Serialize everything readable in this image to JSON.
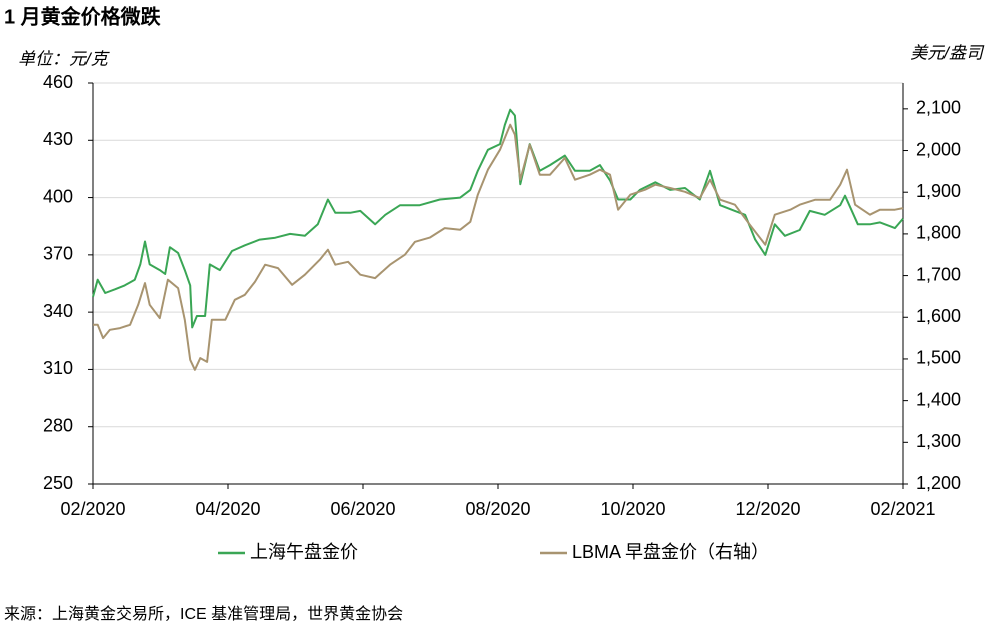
{
  "chart_data": {
    "type": "line",
    "title": "1 月黄金价格微跌",
    "ylabel": "单位：元/克",
    "y2label": "美元/盎司",
    "source": "来源：上海黄金交易所，ICE 基准管理局，世界黄金协会",
    "xlim": [
      0,
      12
    ],
    "xticks": [
      {
        "value": 0,
        "label": "02/2020"
      },
      {
        "value": 2,
        "label": "04/2020"
      },
      {
        "value": 4,
        "label": "06/2020"
      },
      {
        "value": 6,
        "label": "08/2020"
      },
      {
        "value": 8,
        "label": "10/2020"
      },
      {
        "value": 10,
        "label": "12/2020"
      },
      {
        "value": 12,
        "label": "02/2021"
      }
    ],
    "ylim": [
      250,
      460
    ],
    "yticks": [
      250,
      280,
      310,
      340,
      370,
      400,
      430,
      460
    ],
    "y2lim": [
      1200,
      2162
    ],
    "y2ticks": [
      {
        "value": 1200,
        "label": "1,200"
      },
      {
        "value": 1300,
        "label": "1,300"
      },
      {
        "value": 1400,
        "label": "1,400"
      },
      {
        "value": 1500,
        "label": "1,500"
      },
      {
        "value": 1600,
        "label": "1,600"
      },
      {
        "value": 1700,
        "label": "1,700"
      },
      {
        "value": 1800,
        "label": "1,800"
      },
      {
        "value": 1900,
        "label": "1,900"
      },
      {
        "value": 2000,
        "label": "2,000"
      },
      {
        "value": 2100,
        "label": "2,100"
      }
    ],
    "grid": true,
    "legend": "bottom",
    "series": [
      {
        "name": "上海午盘金价",
        "color": "#3aa655",
        "x": [
          0,
          0.07,
          0.18,
          0.33,
          0.47,
          0.62,
          0.7,
          0.77,
          0.84,
          0.99,
          1.07,
          1.14,
          1.26,
          1.36,
          1.44,
          1.47,
          1.54,
          1.66,
          1.73,
          1.88,
          2.06,
          2.25,
          2.47,
          2.7,
          2.92,
          3.14,
          3.33,
          3.48,
          3.59,
          3.81,
          3.96,
          4.18,
          4.33,
          4.55,
          4.84,
          5.14,
          5.44,
          5.59,
          5.7,
          5.85,
          6.03,
          6.1,
          6.18,
          6.25,
          6.33,
          6.47,
          6.62,
          6.77,
          6.99,
          7.14,
          7.36,
          7.51,
          7.66,
          7.78,
          7.96,
          8.1,
          8.33,
          8.55,
          8.77,
          8.99,
          9.14,
          9.29,
          9.51,
          9.66,
          9.81,
          9.96,
          10.1,
          10.25,
          10.47,
          10.62,
          10.84,
          11.07,
          11.14,
          11.33,
          11.51,
          11.66,
          11.88,
          12
        ],
        "values": [
          348,
          357,
          350,
          352,
          354,
          357,
          365,
          377,
          365,
          362,
          360,
          374,
          371,
          362,
          354,
          332,
          338,
          338,
          365,
          362,
          372,
          375,
          378,
          379,
          381,
          380,
          386,
          399,
          392,
          392,
          393,
          386,
          391,
          396,
          396,
          399,
          400,
          404,
          414,
          425,
          428,
          438,
          446,
          443,
          407,
          428,
          414,
          417,
          422,
          414,
          414,
          417,
          409,
          399,
          399,
          404,
          408,
          404,
          405,
          399,
          414,
          396,
          393,
          391,
          378,
          370,
          386,
          380,
          383,
          393,
          391,
          396,
          401,
          386,
          386,
          387,
          384,
          389
        ]
      },
      {
        "name": "LBMA 早盘金价（右轴）",
        "color": "#a89470",
        "axis": "y2",
        "x": [
          0,
          0.07,
          0.15,
          0.25,
          0.4,
          0.55,
          0.67,
          0.77,
          0.84,
          0.99,
          1.11,
          1.26,
          1.36,
          1.44,
          1.51,
          1.59,
          1.69,
          1.76,
          1.96,
          2.1,
          2.25,
          2.4,
          2.55,
          2.74,
          2.95,
          3.14,
          3.36,
          3.48,
          3.59,
          3.78,
          3.96,
          4.18,
          4.4,
          4.62,
          4.77,
          4.99,
          5.21,
          5.44,
          5.59,
          5.7,
          5.85,
          6.03,
          6.18,
          6.25,
          6.33,
          6.47,
          6.62,
          6.77,
          6.99,
          7.14,
          7.36,
          7.51,
          7.66,
          7.78,
          7.96,
          8.18,
          8.33,
          8.55,
          8.77,
          8.99,
          9.14,
          9.29,
          9.51,
          9.73,
          9.96,
          10.1,
          10.33,
          10.47,
          10.7,
          10.92,
          11.07,
          11.17,
          11.29,
          11.51,
          11.66,
          11.88,
          12
        ],
        "values": [
          1582,
          1582,
          1550,
          1570,
          1574,
          1582,
          1630,
          1682,
          1630,
          1598,
          1690,
          1670,
          1594,
          1498,
          1474,
          1502,
          1493,
          1594,
          1594,
          1642,
          1654,
          1685,
          1726,
          1718,
          1678,
          1702,
          1738,
          1762,
          1726,
          1733,
          1702,
          1694,
          1726,
          1750,
          1781,
          1791,
          1814,
          1810,
          1829,
          1894,
          1954,
          2002,
          2062,
          2038,
          1930,
          2014,
          1942,
          1942,
          1982,
          1930,
          1942,
          1954,
          1942,
          1858,
          1894,
          1906,
          1918,
          1910,
          1901,
          1886,
          1930,
          1882,
          1870,
          1822,
          1774,
          1846,
          1858,
          1870,
          1882,
          1882,
          1918,
          1954,
          1870,
          1846,
          1858,
          1858,
          1862
        ]
      }
    ]
  }
}
